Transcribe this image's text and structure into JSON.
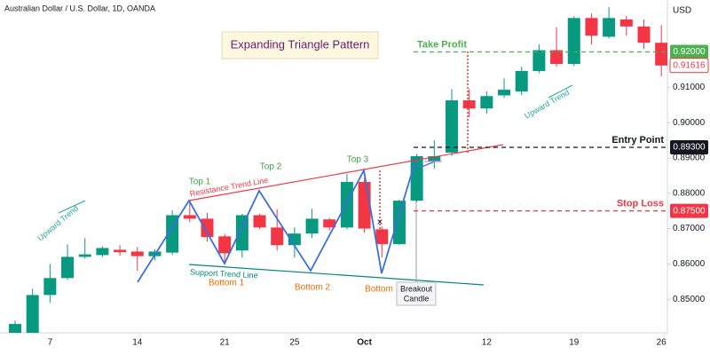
{
  "chart_data": {
    "type": "candlestick",
    "title": "Australian Dollar / U.S. Dollar, 1D, OANDA",
    "y_axis_label": "USD",
    "categories": [
      null,
      null,
      "7",
      null,
      null,
      null,
      null,
      "14",
      null,
      null,
      null,
      null,
      "21",
      null,
      null,
      null,
      "25",
      null,
      null,
      null,
      "Oct",
      null,
      null,
      null,
      null,
      null,
      null,
      "12",
      null,
      null,
      null,
      null,
      "19",
      null,
      null,
      null,
      null,
      "26"
    ],
    "open": [
      0.8405,
      0.8405,
      0.8512,
      0.856,
      0.862,
      0.8625,
      0.864,
      0.8635,
      0.8622,
      0.8632,
      0.8738,
      0.8728,
      0.8678,
      0.8638,
      0.8738,
      0.8703,
      0.8653,
      0.8686,
      0.8726,
      0.8703,
      0.8832,
      0.8698,
      0.8656,
      0.8779,
      0.889,
      0.8915,
      0.9063,
      0.904,
      0.9077,
      0.9088,
      0.9146,
      0.9205,
      0.9166,
      0.9296,
      0.9243,
      0.9292,
      0.9272,
      0.9226
    ],
    "high": [
      0.844,
      0.853,
      0.86,
      0.8655,
      0.8673,
      0.865,
      0.8653,
      0.8648,
      0.8642,
      0.8752,
      0.8775,
      0.8745,
      0.8685,
      0.8742,
      0.8742,
      0.8755,
      0.8703,
      0.8756,
      0.873,
      0.8854,
      0.8844,
      0.8706,
      0.8782,
      0.8912,
      0.895,
      0.9095,
      0.9095,
      0.9088,
      0.9125,
      0.9158,
      0.9221,
      0.927,
      0.9301,
      0.9309,
      0.9326,
      0.9302,
      0.9292,
      0.9276
    ],
    "low": [
      0.839,
      0.839,
      0.849,
      0.8555,
      0.8615,
      0.862,
      0.8623,
      0.858,
      0.861,
      0.8625,
      0.8718,
      0.8663,
      0.8603,
      0.8618,
      0.8698,
      0.8638,
      0.8618,
      0.8673,
      0.8695,
      0.8698,
      0.8688,
      0.8618,
      0.8653,
      0.8775,
      0.887,
      0.8905,
      0.9015,
      0.9025,
      0.907,
      0.9078,
      0.914,
      0.9158,
      0.916,
      0.9221,
      0.9238,
      0.9246,
      0.9209,
      0.9131
    ],
    "close": [
      0.843,
      0.8512,
      0.856,
      0.862,
      0.8627,
      0.8645,
      0.8633,
      0.8622,
      0.8635,
      0.8738,
      0.8728,
      0.8676,
      0.863,
      0.8738,
      0.8703,
      0.8653,
      0.8686,
      0.8728,
      0.8703,
      0.8832,
      0.87,
      0.8656,
      0.8779,
      0.8905,
      0.8905,
      0.9063,
      0.904,
      0.9075,
      0.9093,
      0.9146,
      0.9205,
      0.9166,
      0.9296,
      0.9246,
      0.9296,
      0.9272,
      0.9226,
      0.91616
    ],
    "up_color": "#089981",
    "down_color": "#f23645",
    "ylim": [
      0.8405,
      0.9347
    ],
    "yticks": [
      {
        "value": 0.85,
        "label": "0.85000"
      },
      {
        "value": 0.86,
        "label": "0.86000"
      },
      {
        "value": 0.87,
        "label": "0.87000"
      },
      {
        "value": 0.88,
        "label": "0.88000"
      },
      {
        "value": 0.89,
        "label": "0.89000"
      },
      {
        "value": 0.9,
        "label": "0.90000"
      },
      {
        "value": 0.91,
        "label": "0.91000"
      }
    ],
    "levels": [
      {
        "name": "Take Profit",
        "value": 0.92,
        "label": "0.92000",
        "color": "#4caf50"
      },
      {
        "name": "Entry Point",
        "value": 0.893,
        "label": "0.89300",
        "color": "#131722"
      },
      {
        "name": "Stop Loss",
        "value": 0.875,
        "label": "0.87500",
        "color": "#f23645"
      }
    ],
    "last_price": {
      "value": 0.91616,
      "label": "0.91616",
      "color": "#f23645"
    },
    "annotations": {
      "pattern_title": "Expanding Triangle Pattern",
      "tops": [
        "Top 1",
        "Top 2",
        "Top 3"
      ],
      "bottoms": [
        "Bottom 1",
        "Bottom 2",
        "Bottom"
      ],
      "resistance": "Resistance Trend Line",
      "support": "Support Trend Line",
      "trend": [
        "Upward Trend",
        "Upward Trend"
      ],
      "breakout": [
        "Breakout",
        "Candle"
      ],
      "exit_mark": "×"
    }
  }
}
